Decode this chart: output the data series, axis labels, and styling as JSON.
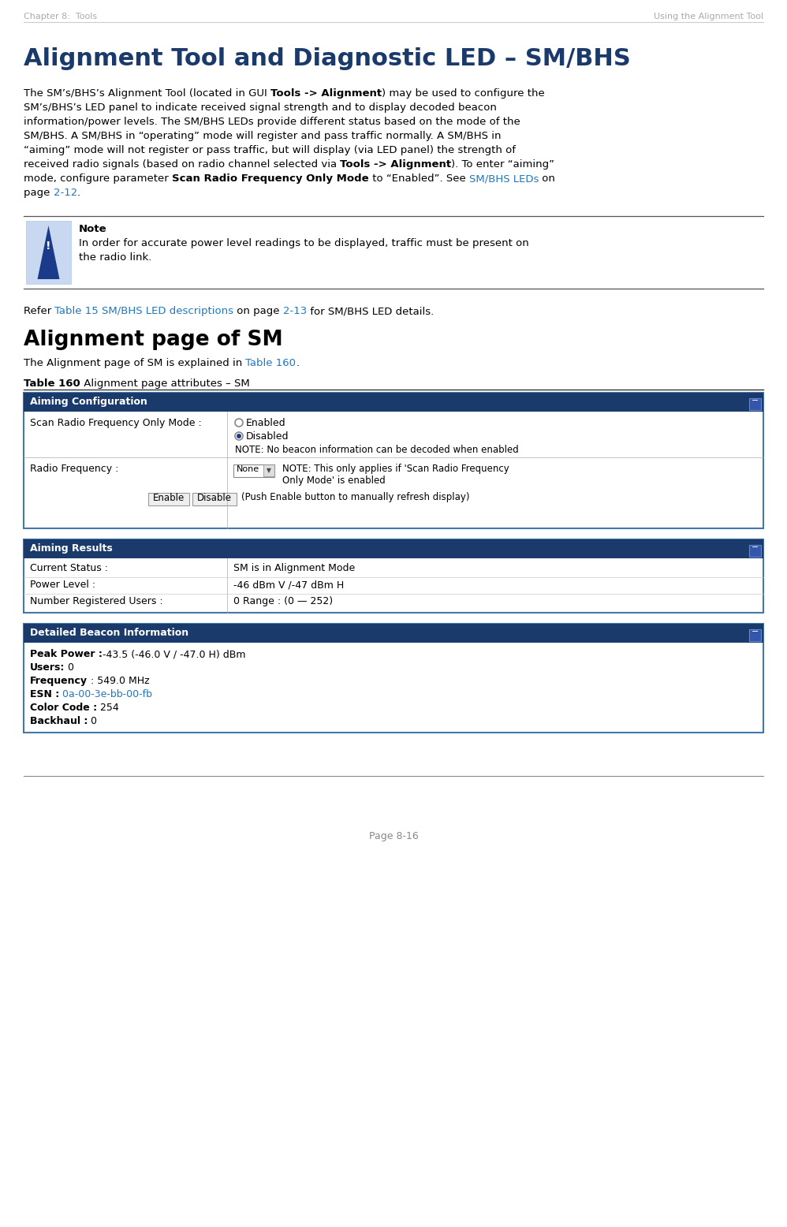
{
  "header_left": "Chapter 8:  Tools",
  "header_right": "Using the Alignment Tool",
  "header_color": "#aaaaaa",
  "title": "Alignment Tool and Diagnostic LED – SM/BHS",
  "title_color": "#1a3a6b",
  "note_title": "Note",
  "note_text_line1": "In order for accurate power level readings to be displayed, traffic must be present on",
  "note_text_line2": "the radio link.",
  "refer_pre": "Refer ",
  "refer_link": "Table 15 SM/BHS LED descriptions",
  "refer_mid": " on page ",
  "refer_link2": "2-13",
  "refer_post": " for SM/BHS LED details.",
  "section2_title": "Alignment page of SM",
  "section2_pre": "The Alignment page of SM is explained in ",
  "section2_link": "Table 160",
  "section2_post": ".",
  "table_cap_bold": "Table 160",
  "table_cap_normal": " Alignment page attributes – SM",
  "link_color": "#2277bb",
  "dark_blue": "#1a3a6b",
  "panel_header_bg": "#1a3a6b",
  "page_footer": "Page 8-16",
  "aiming_config_title": "Aiming Configuration",
  "aiming_results_title": "Aiming Results",
  "aiming_results_fields": [
    {
      "label": "Current Status :",
      "value": "SM is in Alignment Mode"
    },
    {
      "label": "Power Level :",
      "value": "-46 dBm V /-47 dBm H"
    },
    {
      "label": "Number Registered Users :",
      "value": "0 Range : (0 — 252)"
    }
  ],
  "beacon_title": "Detailed Beacon Information",
  "beacon_fields": [
    {
      "bold": "Peak Power :",
      "normal": "-43.5 (-46.0 V / -47.0 H) dBm",
      "normal_color": "black"
    },
    {
      "bold": "Users:",
      "normal": " 0",
      "normal_color": "black"
    },
    {
      "bold": "Frequency",
      "normal": " : 549.0 MHz",
      "normal_color": "black"
    },
    {
      "bold": "ESN :",
      "normal": " 0a-00-3e-bb-00-fb",
      "normal_color": "#2277bb"
    },
    {
      "bold": "Color Code :",
      "normal": " 254",
      "normal_color": "black"
    },
    {
      "bold": "Backhaul :",
      "normal": " 0",
      "normal_color": "black"
    }
  ],
  "para_lines": [
    [
      {
        "t": "The SM’s/BHS’s Alignment Tool (located in GUI ",
        "b": false,
        "c": "black"
      },
      {
        "t": "Tools -> Alignment",
        "b": true,
        "c": "black"
      },
      {
        "t": ") may be used to configure the",
        "b": false,
        "c": "black"
      }
    ],
    [
      {
        "t": "SM’s/BHS’s LED panel to indicate received signal strength and to display decoded beacon",
        "b": false,
        "c": "black"
      }
    ],
    [
      {
        "t": "information/power levels. The SM/BHS LEDs provide different status based on the mode of the",
        "b": false,
        "c": "black"
      }
    ],
    [
      {
        "t": "SM/BHS. A SM/BHS in “operating” mode will register and pass traffic normally. A SM/BHS in",
        "b": false,
        "c": "black"
      }
    ],
    [
      {
        "t": "“aiming” mode will not register or pass traffic, but will display (via LED panel) the strength of",
        "b": false,
        "c": "black"
      }
    ],
    [
      {
        "t": "received radio signals (based on radio channel selected via ",
        "b": false,
        "c": "black"
      },
      {
        "t": "Tools -> Alignment",
        "b": true,
        "c": "black"
      },
      {
        "t": "). To enter “aiming”",
        "b": false,
        "c": "black"
      }
    ],
    [
      {
        "t": "mode, configure parameter ",
        "b": false,
        "c": "black"
      },
      {
        "t": "Scan Radio Frequency Only Mode",
        "b": true,
        "c": "black"
      },
      {
        "t": " to “Enabled”. See ",
        "b": false,
        "c": "black"
      },
      {
        "t": "SM/BHS LEDs",
        "b": false,
        "c": "#2277bb"
      },
      {
        "t": " on",
        "b": false,
        "c": "black"
      }
    ],
    [
      {
        "t": "page ",
        "b": false,
        "c": "black"
      },
      {
        "t": "2-12",
        "b": false,
        "c": "#2277bb"
      },
      {
        "t": ".",
        "b": false,
        "c": "black"
      }
    ]
  ]
}
